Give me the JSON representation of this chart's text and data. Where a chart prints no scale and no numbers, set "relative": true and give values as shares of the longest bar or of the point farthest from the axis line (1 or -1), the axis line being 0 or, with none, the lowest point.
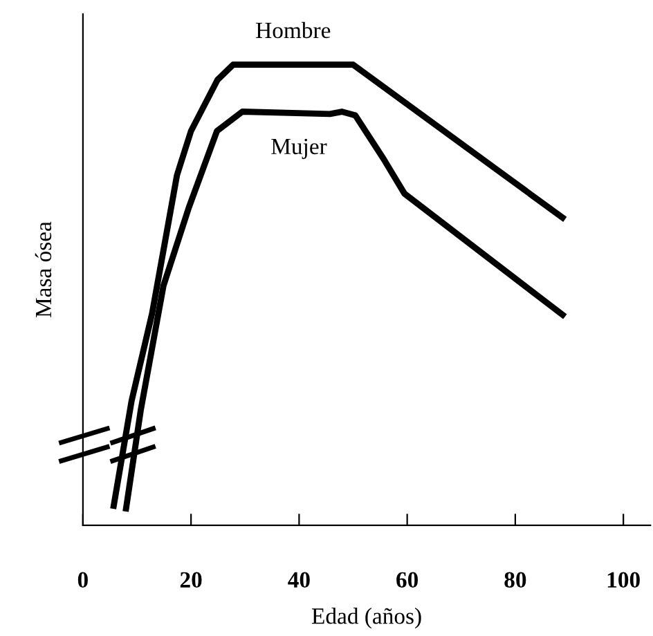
{
  "chart_data": {
    "type": "line",
    "relative": true,
    "xlabel": "Edad (años)",
    "ylabel": "Masa ósea",
    "xlim": [
      0,
      105
    ],
    "xticks": [
      0,
      20,
      40,
      60,
      80,
      100
    ],
    "grid": false,
    "legend": false,
    "marker": "none",
    "line_style": "solid",
    "series": [
      {
        "name": "Hombre",
        "color": "#000000",
        "x": [
          5.6,
          9.0,
          12.8,
          17.4,
          20,
          24.9,
          27.8,
          50,
          89.2
        ],
        "values": [
          0.036,
          0.27,
          0.46,
          0.76,
          0.856,
          0.967,
          1,
          1,
          0.664
        ]
      },
      {
        "name": "Mujer",
        "color": "#000000",
        "x": [
          7.9,
          10.7,
          14.9,
          19.6,
          24.8,
          29.5,
          45.7,
          47.9,
          50.4,
          55.6,
          59.5,
          89.2
        ],
        "values": [
          0.03,
          0.25,
          0.52,
          0.69,
          0.856,
          0.898,
          0.893,
          0.898,
          0.89,
          0.796,
          0.72,
          0.453
        ]
      }
    ]
  }
}
